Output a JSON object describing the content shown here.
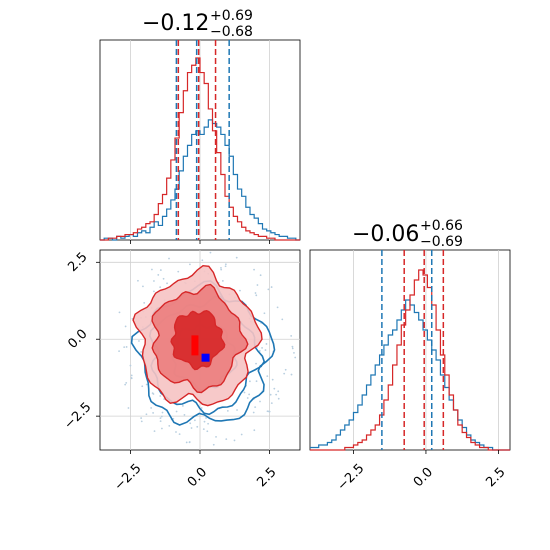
{
  "chart_data": [
    {
      "panel": "top-left",
      "type": "histogram",
      "title_main": "−0.12",
      "title_sup": "+0.69",
      "title_sub": "−0.68",
      "xlim": [
        -3.6,
        3.6
      ],
      "grid": true,
      "bin_edges": [
        -3.6,
        3.6
      ],
      "series": [
        {
          "color": "#1f77b4",
          "counts": [
            0,
            1,
            1,
            0,
            2,
            1,
            2,
            3,
            2,
            4,
            5,
            4,
            7,
            10,
            8,
            13,
            17,
            22,
            28,
            38,
            46,
            52,
            58,
            60,
            58,
            62,
            66,
            64,
            62,
            58,
            52,
            46,
            36,
            28,
            24,
            18,
            14,
            12,
            9,
            6,
            5,
            4,
            3,
            2,
            2,
            1,
            1,
            0
          ]
        },
        {
          "color": "#d62728",
          "counts": [
            0,
            0,
            1,
            1,
            2,
            2,
            3,
            3,
            4,
            6,
            7,
            9,
            10,
            14,
            20,
            25,
            34,
            44,
            56,
            70,
            82,
            92,
            96,
            100,
            92,
            86,
            72,
            60,
            48,
            36,
            24,
            18,
            13,
            10,
            7,
            5,
            4,
            3,
            2,
            2,
            1,
            1,
            0,
            0,
            0,
            0,
            0,
            0
          ]
        }
      ],
      "quantile_lines": [
        {
          "color": "#1f77b4",
          "values": [
            -0.85,
            1.05
          ]
        },
        {
          "color": "#d62728",
          "values": [
            -0.78,
            0.56
          ]
        }
      ],
      "center_line": -0.12
    },
    {
      "panel": "bottom-left",
      "type": "contour",
      "xlim": [
        -3.6,
        3.6
      ],
      "ylim": [
        -3.6,
        2.9
      ],
      "xticks": [
        -2.5,
        0.0,
        2.5
      ],
      "yticks": [
        -2.5,
        0.0,
        2.5
      ],
      "xtick_labels": [
        "−2.5",
        "0.0",
        "2.5"
      ],
      "ytick_labels": [
        "−2.5",
        "0.0",
        "2.5"
      ],
      "grid": true,
      "series": [
        {
          "color": "#1f77b4",
          "center": [
            0.15,
            -0.55
          ],
          "radii": [
            1.1,
            1.9,
            2.35
          ]
        },
        {
          "color": "#d62728",
          "center": [
            -0.1,
            0.0
          ],
          "radii": [
            0.9,
            1.6,
            2.1
          ]
        }
      ],
      "markers": [
        {
          "color": "#ff0000",
          "x": -0.2,
          "y": -0.2
        },
        {
          "color": "#0000ff",
          "x": 0.2,
          "y": -0.6
        }
      ]
    },
    {
      "panel": "bottom-right",
      "type": "histogram",
      "title_main": "−0.06",
      "title_sup": "+0.66",
      "title_sub": "−0.69",
      "xlim": [
        -4.0,
        2.9
      ],
      "xticks": [
        -2.5,
        0.0,
        2.5
      ],
      "xtick_labels": [
        "−2.5",
        "0.0",
        "2.5"
      ],
      "grid": true,
      "bin_edges": [
        -4.0,
        2.9
      ],
      "series": [
        {
          "color": "#1f77b4",
          "counts": [
            1,
            1,
            2,
            2,
            3,
            4,
            6,
            8,
            10,
            12,
            15,
            18,
            22,
            26,
            30,
            34,
            38,
            42,
            46,
            48,
            52,
            56,
            60,
            58,
            55,
            52,
            48,
            44,
            40,
            36,
            30,
            25,
            20,
            16,
            12,
            9,
            6,
            4,
            3,
            2,
            1,
            1,
            0,
            0,
            0,
            0
          ]
        },
        {
          "color": "#d62728",
          "counts": [
            0,
            0,
            0,
            0,
            0,
            0,
            0,
            0,
            1,
            1,
            2,
            3,
            4,
            6,
            8,
            10,
            14,
            20,
            26,
            34,
            42,
            50,
            56,
            62,
            68,
            72,
            70,
            65,
            58,
            48,
            38,
            30,
            22,
            16,
            10,
            7,
            5,
            3,
            2,
            1,
            1,
            0,
            0,
            0,
            0,
            0
          ]
        }
      ],
      "quantile_lines": [
        {
          "color": "#1f77b4",
          "values": [
            -1.52,
            0.2
          ]
        },
        {
          "color": "#d62728",
          "values": [
            -0.75,
            0.6
          ]
        }
      ],
      "center_line": -0.06
    }
  ]
}
